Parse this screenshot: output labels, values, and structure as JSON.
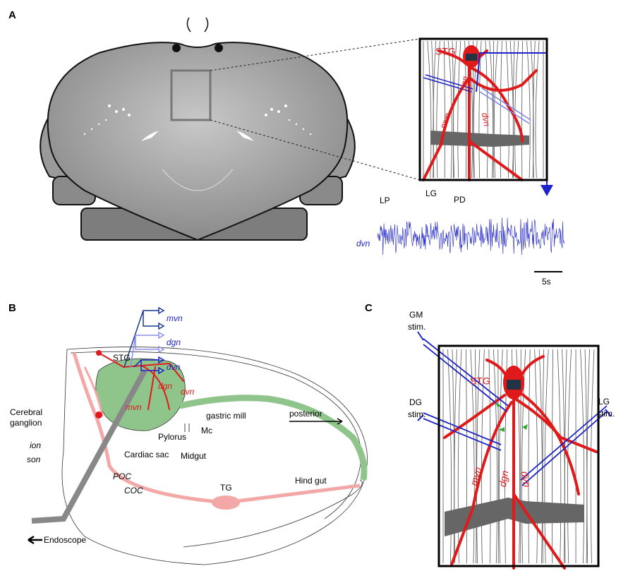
{
  "panel_labels": [
    "A",
    "B",
    "C"
  ],
  "panel_a": {
    "inset": {
      "ganglion": "STG",
      "dgn": "dgn",
      "mvn": "mvn",
      "dvn": "dvn"
    },
    "recording": {
      "bursts": [
        "LP",
        "LG",
        "PD"
      ],
      "nerve": "dvn",
      "scale_bar": "5s"
    }
  },
  "panel_b": {
    "electrodes": [
      "mvn",
      "dgn",
      "dvn"
    ],
    "nerve_labels": {
      "stg": "STG",
      "dgn": "dgn",
      "dvn": "dvn",
      "mvn": "mvn"
    },
    "direction": "posterior",
    "structures": {
      "gastric_mill": "gastric mill",
      "mc": "Mc",
      "pylorus": "Pylorus",
      "cardiac_sac": "Cardiac sac",
      "midgut": "Midgut",
      "cerebral_ganglion": [
        "Cerebral",
        "ganglion"
      ],
      "ion": "ion",
      "son": "son",
      "poc": "POC",
      "coc": "COC",
      "tg": "TG",
      "hind_gut": "Hind gut",
      "endoscope": "Endoscope"
    }
  },
  "panel_c": {
    "stimulation": {
      "gm": [
        "GM",
        "stim."
      ],
      "dg": [
        "DG",
        "stim."
      ],
      "lg": [
        "LG",
        "stim."
      ]
    },
    "ganglion": "STG",
    "mvn": "mvn",
    "dgn": "dgn",
    "dvn": "dvn"
  }
}
